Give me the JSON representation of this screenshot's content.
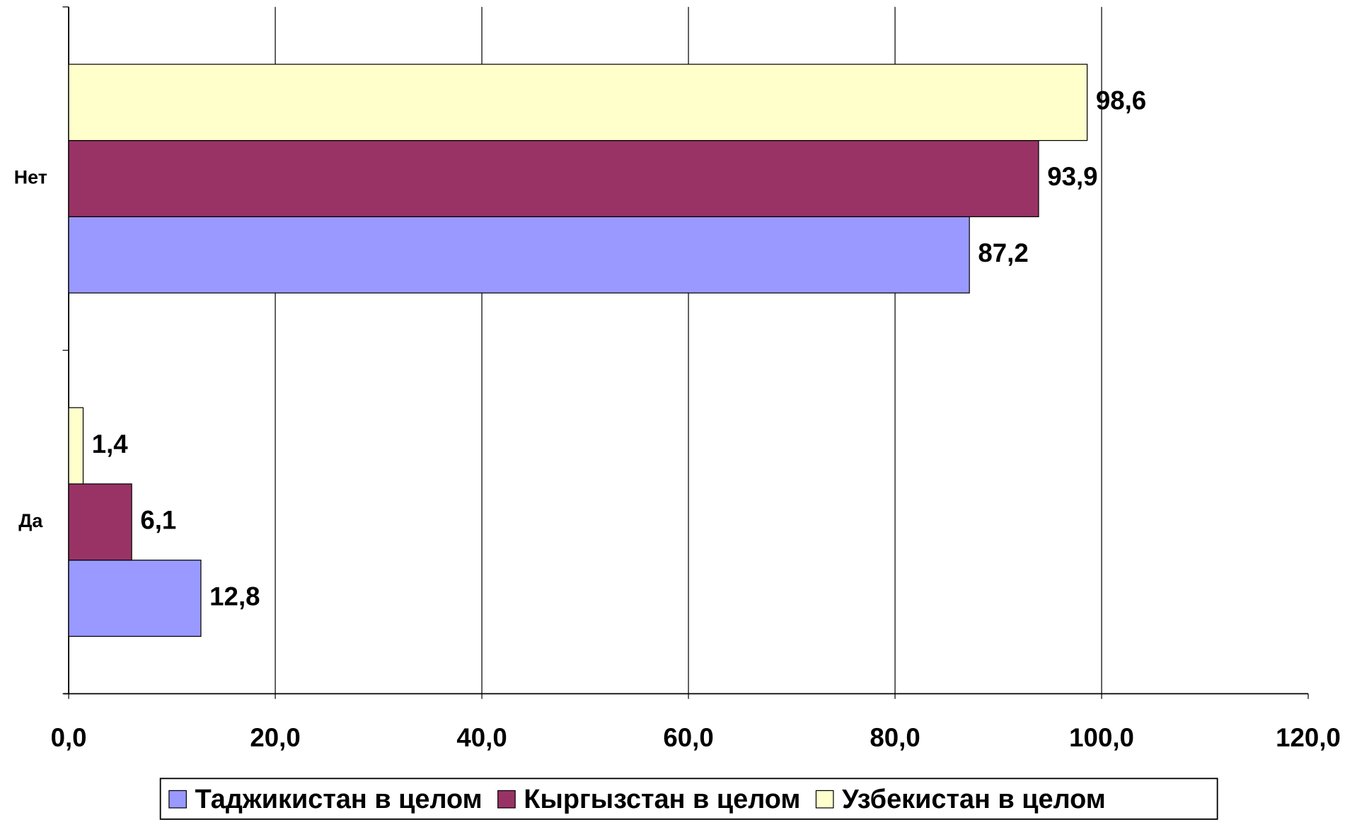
{
  "chart_data": {
    "type": "hbar",
    "categories": [
      "Да",
      "Нет"
    ],
    "series": [
      {
        "name": "Таджикистан в целом",
        "color": "#9999ff",
        "values": [
          12.8,
          87.2
        ],
        "value_labels": [
          "12,8",
          "87,2"
        ]
      },
      {
        "name": "Кыргызстан в целом",
        "color": "#993366",
        "values": [
          6.1,
          93.9
        ],
        "value_labels": [
          "6,1",
          "93,9"
        ]
      },
      {
        "name": "Узбекистан в целом",
        "color": "#ffffcc",
        "values": [
          1.4,
          98.6
        ],
        "value_labels": [
          "1,4",
          "98,6"
        ]
      }
    ],
    "xlim": [
      0,
      120
    ],
    "xticks": [
      {
        "value": 0,
        "label": "0,0"
      },
      {
        "value": 20,
        "label": "20,0"
      },
      {
        "value": 40,
        "label": "40,0"
      },
      {
        "value": 60,
        "label": "60,0"
      },
      {
        "value": 80,
        "label": "80,0"
      },
      {
        "value": 100,
        "label": "100,0"
      },
      {
        "value": 120,
        "label": "120,0"
      }
    ],
    "grid": true,
    "legend": "bottom"
  }
}
